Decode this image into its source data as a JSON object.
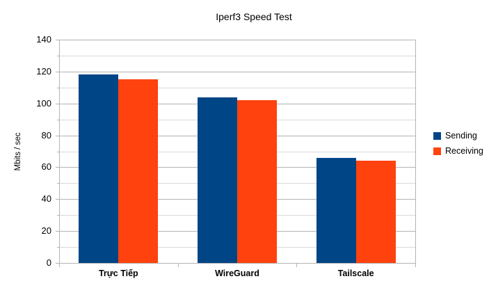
{
  "chart_data": {
    "type": "bar",
    "title": "Iperf3 Speed Test",
    "xlabel": "",
    "ylabel": "Mbits / sec",
    "categories": [
      "Trực Tiếp",
      "WireGuard",
      "Tailscale"
    ],
    "series": [
      {
        "name": "Sending",
        "color": "#004586",
        "values": [
          118,
          104,
          66
        ]
      },
      {
        "name": "Receiving",
        "color": "#ff420e",
        "values": [
          115,
          102,
          64
        ]
      }
    ],
    "ylim": [
      0,
      140
    ],
    "yticks": [
      0,
      20,
      40,
      60,
      80,
      100,
      120,
      140
    ],
    "minor_step": 10,
    "grid": true,
    "legend_position": "right",
    "colors": {
      "grid_major": "#b3b3b3",
      "grid_minor": "#d9d9d9",
      "axis": "#b3b3b3",
      "text": "#000000",
      "background": "#ffffff"
    }
  }
}
